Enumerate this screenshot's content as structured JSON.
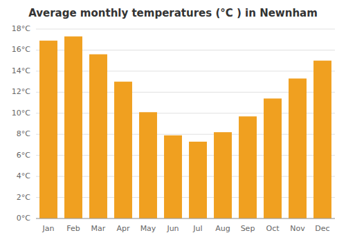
{
  "chart_data": {
    "type": "bar",
    "title": "Average monthly temperatures (°C ) in Newnham",
    "categories": [
      "Jan",
      "Feb",
      "Mar",
      "Apr",
      "May",
      "Jun",
      "Jul",
      "Aug",
      "Sep",
      "Oct",
      "Nov",
      "Dec"
    ],
    "values": [
      16.9,
      17.3,
      15.6,
      13.0,
      10.1,
      7.9,
      7.3,
      8.2,
      9.7,
      11.4,
      13.3,
      15.0
    ],
    "color": "#F0A020",
    "ylim": [
      0,
      18
    ],
    "yticks": [
      {
        "value": 0,
        "label": "0°C"
      },
      {
        "value": 2,
        "label": "2°C"
      },
      {
        "value": 4,
        "label": "4°C"
      },
      {
        "value": 6,
        "label": "6°C"
      },
      {
        "value": 8,
        "label": "8°C"
      },
      {
        "value": 10,
        "label": "10°C"
      },
      {
        "value": 12,
        "label": "12°C"
      },
      {
        "value": 14,
        "label": "14°C"
      },
      {
        "value": 16,
        "label": "16°C"
      },
      {
        "value": 18,
        "label": "18°C"
      }
    ],
    "grid": true
  }
}
